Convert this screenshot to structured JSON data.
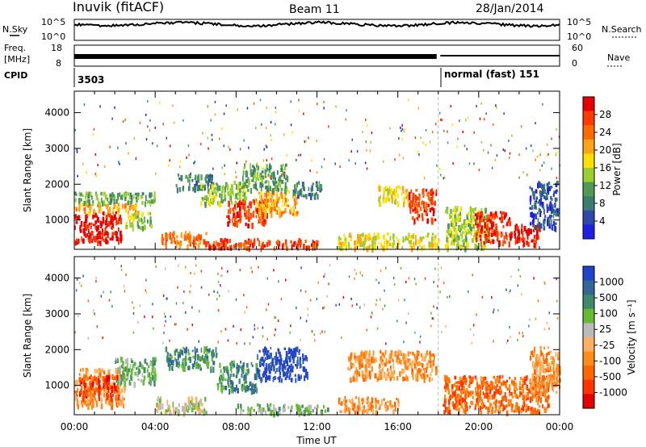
{
  "header": {
    "station": "Inuvik (fitACF)",
    "beam": "Beam 11",
    "date": "28/Jan/2014"
  },
  "summary_panel": {
    "left_labels": {
      "nsky": "N.Sky",
      "freq_line1": "Freq.",
      "freq_line2": "[MHz]",
      "cpid": "CPID"
    },
    "right_labels": {
      "nsearch": "N.Search",
      "nave": "Nave"
    },
    "noise_ticks": {
      "top": "10^5",
      "bottom": "10^0"
    },
    "freq_ticks": {
      "top": "18",
      "bottom": "8"
    },
    "nave_ticks": {
      "top": "60",
      "bottom": "0"
    },
    "cpid_segments": [
      {
        "label": "3503",
        "start_hour": 0,
        "end_hour": 18.0
      },
      {
        "label": "normal (fast) 151",
        "start_hour": 18.0,
        "end_hour": 24
      }
    ]
  },
  "x_axis": {
    "title": "Time UT",
    "tick_labels": [
      "00:00",
      "04:00",
      "08:00",
      "12:00",
      "16:00",
      "20:00",
      "00:00"
    ],
    "tick_hours": [
      0,
      4,
      8,
      12,
      16,
      20,
      24
    ]
  },
  "colors": {
    "power_scale": [
      "#1f1fe6",
      "#2e4aa8",
      "#3b7d6e",
      "#4f9a55",
      "#9bcf2f",
      "#ffe000",
      "#ffa31a",
      "#ff6a00",
      "#ff3a00",
      "#e60000"
    ],
    "velocity_scale": [
      "#2244cc",
      "#336699",
      "#3f8a6a",
      "#66bb33",
      "#bbbbbb",
      "#ffb060",
      "#ff8c1a",
      "#ff6600",
      "#ff3300",
      "#e60000"
    ]
  },
  "chart_data": [
    {
      "type": "heatmap",
      "panel": "power",
      "xlabel": "Time UT",
      "ylabel": "Slant Range [km]",
      "xlim": [
        0,
        24
      ],
      "ylim": [
        180,
        4600
      ],
      "y_tick_labels": [
        "1000",
        "2000",
        "3000",
        "4000"
      ],
      "y_ticks": [
        1000,
        2000,
        3000,
        4000
      ],
      "colorbar": {
        "label": "Power [dB]",
        "tick_labels": [
          "4",
          "8",
          "12",
          "16",
          "20",
          "24",
          "28"
        ],
        "ticks": [
          4,
          8,
          12,
          16,
          20,
          24,
          28
        ],
        "range": [
          0,
          30
        ]
      },
      "regions": [
        {
          "t0": 0.0,
          "t1": 2.3,
          "r0": 400,
          "r1": 1250,
          "level": 9
        },
        {
          "t0": 0.0,
          "t1": 3.2,
          "r0": 1250,
          "r1": 1500,
          "level": 6
        },
        {
          "t0": 0.0,
          "t1": 4.0,
          "r0": 1500,
          "r1": 1800,
          "level": 3
        },
        {
          "t0": 2.5,
          "t1": 3.8,
          "r0": 800,
          "r1": 1250,
          "level": 4
        },
        {
          "t0": 4.3,
          "t1": 6.5,
          "r0": 300,
          "r1": 700,
          "level": 7
        },
        {
          "t0": 5.0,
          "t1": 6.8,
          "r0": 1900,
          "r1": 2300,
          "level": 2
        },
        {
          "t0": 6.5,
          "t1": 8.0,
          "r0": 250,
          "r1": 500,
          "level": 8
        },
        {
          "t0": 6.2,
          "t1": 8.5,
          "r0": 1500,
          "r1": 2100,
          "level": 4
        },
        {
          "t0": 7.5,
          "t1": 9.5,
          "r0": 900,
          "r1": 1600,
          "level": 8
        },
        {
          "t0": 9.0,
          "t1": 11.0,
          "r0": 1200,
          "r1": 1850,
          "level": 6
        },
        {
          "t0": 8.3,
          "t1": 10.5,
          "r0": 1850,
          "r1": 2600,
          "level": 3
        },
        {
          "t0": 8.0,
          "t1": 12.0,
          "r0": 250,
          "r1": 500,
          "level": 8
        },
        {
          "t0": 10.8,
          "t1": 12.2,
          "r0": 1700,
          "r1": 2100,
          "level": 2
        },
        {
          "t0": 13.0,
          "t1": 18.0,
          "r0": 250,
          "r1": 650,
          "level": 5
        },
        {
          "t0": 15.0,
          "t1": 16.5,
          "r0": 1500,
          "r1": 2000,
          "level": 5
        },
        {
          "t0": 16.5,
          "t1": 17.9,
          "r0": 1000,
          "r1": 1900,
          "level": 8
        },
        {
          "t0": 18.3,
          "t1": 20.5,
          "r0": 250,
          "r1": 1400,
          "level": 4
        },
        {
          "t0": 19.8,
          "t1": 21.5,
          "r0": 400,
          "r1": 1250,
          "level": 8
        },
        {
          "t0": 21.5,
          "t1": 23.0,
          "r0": 350,
          "r1": 900,
          "level": 9
        },
        {
          "t0": 22.5,
          "t1": 23.9,
          "r0": 800,
          "r1": 2100,
          "level": 1
        }
      ]
    },
    {
      "type": "heatmap",
      "panel": "velocity",
      "xlabel": "Time UT",
      "ylabel": "Slant Range [km]",
      "xlim": [
        0,
        24
      ],
      "ylim": [
        180,
        4600
      ],
      "y_tick_labels": [
        "1000",
        "2000",
        "3000",
        "4000"
      ],
      "y_ticks": [
        1000,
        2000,
        3000,
        4000
      ],
      "colorbar": {
        "label": "Velocity [m s⁻¹]",
        "tick_labels": [
          "1000",
          "500",
          "100",
          "25",
          "-25",
          "-100",
          "-500",
          "-1000"
        ],
        "ticks": [
          1000,
          500,
          100,
          25,
          -25,
          -100,
          -500,
          -1000
        ]
      },
      "regions": [
        {
          "t0": 0.0,
          "t1": 2.5,
          "r0": 450,
          "r1": 1500,
          "level": 6
        },
        {
          "t0": 0.2,
          "t1": 2.2,
          "r0": 700,
          "r1": 1300,
          "level": 8
        },
        {
          "t0": 2.0,
          "t1": 4.0,
          "r0": 1100,
          "r1": 1800,
          "level": 3
        },
        {
          "t0": 4.0,
          "t1": 6.5,
          "r0": 250,
          "r1": 700,
          "level": 4
        },
        {
          "t0": 4.5,
          "t1": 7.0,
          "r0": 1500,
          "r1": 2100,
          "level": 2
        },
        {
          "t0": 7.0,
          "t1": 9.0,
          "r0": 900,
          "r1": 1700,
          "level": 2
        },
        {
          "t0": 9.0,
          "t1": 11.5,
          "r0": 1200,
          "r1": 2100,
          "level": 0
        },
        {
          "t0": 8.0,
          "t1": 12.5,
          "r0": 250,
          "r1": 500,
          "level": 3
        },
        {
          "t0": 13.0,
          "t1": 16.0,
          "r0": 300,
          "r1": 700,
          "level": 6
        },
        {
          "t0": 13.5,
          "t1": 17.9,
          "r0": 1200,
          "r1": 2000,
          "level": 6
        },
        {
          "t0": 18.2,
          "t1": 23.5,
          "r0": 300,
          "r1": 1300,
          "level": 7
        },
        {
          "t0": 22.5,
          "t1": 24.0,
          "r0": 800,
          "r1": 2100,
          "level": 6
        }
      ]
    }
  ]
}
